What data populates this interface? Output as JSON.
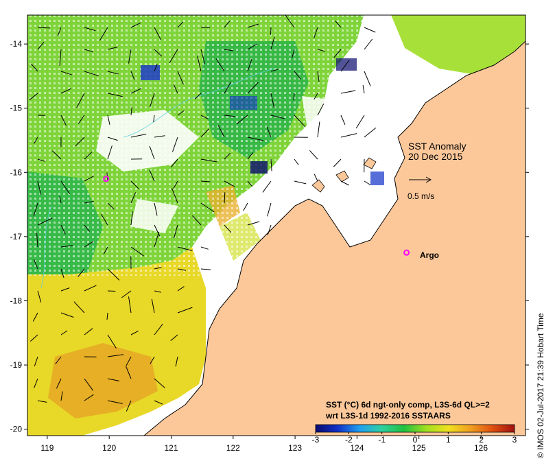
{
  "map": {
    "title_line1": "SST Anomaly",
    "title_line2": "20 Dec 2015",
    "vector_scale_label": "0.5 m/s",
    "argo_label": "Argo",
    "legend_line1": "SST (°C) 6d ngt-only comp, L3S-6d QL>=2",
    "legend_line2": "wrt L3S-1d 1992-2016 SSTAARS",
    "colorbar_ticks": [
      "-3",
      "-2",
      "-1",
      "0",
      "1",
      "2",
      "3"
    ],
    "colorbar_range": [
      -3,
      3
    ],
    "lon_ticks": [
      "119",
      "120",
      "121",
      "122",
      "123",
      "124",
      "125",
      "126"
    ],
    "lat_ticks": [
      "-14",
      "-15",
      "-16",
      "-17",
      "-18",
      "-19",
      "-20"
    ],
    "lon_range": [
      118.68,
      126.72
    ],
    "lat_range": [
      -20.1,
      -13.55
    ],
    "credit": "© IMOS 02-Jul-2017 21:39 Hobart Time",
    "colors": {
      "land": "#fcc89a",
      "argo_marker": "#ff00ff",
      "colorbar": [
        "#0a0a6e",
        "#1030c8",
        "#20a0f0",
        "#30d0a0",
        "#20c040",
        "#a0e020",
        "#f0e020",
        "#f0a020",
        "#e05010",
        "#a01010"
      ]
    },
    "argo_floats": [
      {
        "lon": 119.95,
        "lat": -16.1
      },
      {
        "lon": 124.8,
        "lat": -17.25
      }
    ]
  }
}
